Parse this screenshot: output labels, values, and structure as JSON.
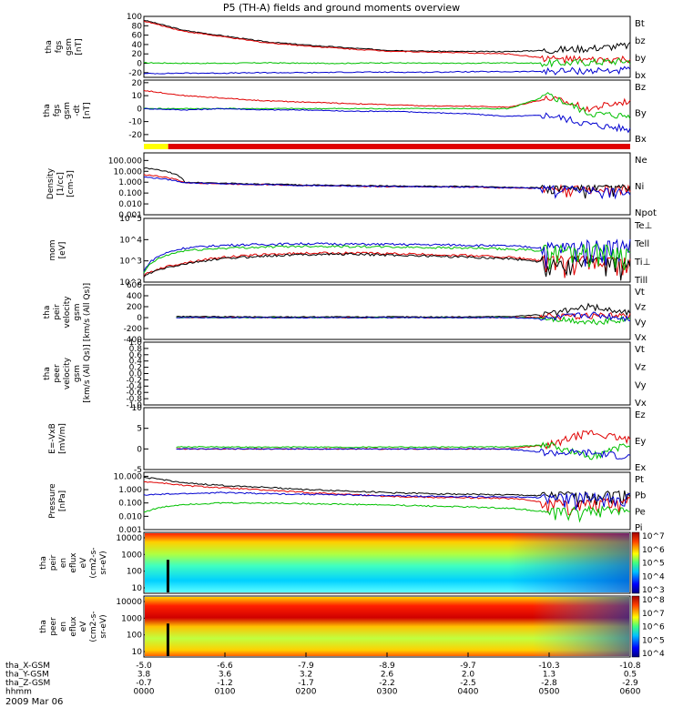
{
  "title": "P5 (TH-A) fields and ground moments overview",
  "date": "2009 Mar 06",
  "time_axis": {
    "rows": [
      {
        "label": "tha_X-GSM",
        "values": [
          "-5.0",
          "-6.6",
          "-7.9",
          "-8.9",
          "-9.7",
          "-10.3",
          "-10.8"
        ]
      },
      {
        "label": "tha_Y-GSM",
        "values": [
          "3.8",
          "3.6",
          "3.2",
          "2.6",
          "2.0",
          "1.3",
          "0.5"
        ]
      },
      {
        "label": "tha_Z-GSM",
        "values": [
          "-0.7",
          "-1.2",
          "-1.7",
          "-2.2",
          "-2.5",
          "-2.8",
          "-2.9"
        ]
      },
      {
        "label": "hhmm",
        "values": [
          "0000",
          "0100",
          "0200",
          "0300",
          "0400",
          "0500",
          "0600"
        ]
      }
    ]
  },
  "colors": {
    "black": "#000000",
    "red": "#e00000",
    "green": "#00c000",
    "blue": "#0000d0",
    "yellow": "#ffff00"
  },
  "chart_data": [
    {
      "type": "line",
      "panel": "fgs_gsm",
      "ylabel_lines": [
        "tha",
        "fgs",
        "gsm",
        "[nT]"
      ],
      "ylim": [
        -30,
        100
      ],
      "yticks": [
        "100",
        "80",
        "60",
        "40",
        "20",
        "0",
        "-20"
      ],
      "x": [
        0,
        0.5,
        1,
        1.5,
        2,
        2.5,
        3,
        3.5,
        4,
        4.5,
        5,
        5.5,
        6
      ],
      "series": [
        {
          "name": "Bt",
          "color": "#000000",
          "values": [
            92,
            70,
            58,
            46,
            39,
            33,
            28,
            26,
            25,
            25,
            28,
            32,
            38
          ]
        },
        {
          "name": "bz",
          "color": "#e00000",
          "values": [
            90,
            68,
            56,
            44,
            37,
            31,
            26,
            24,
            22,
            20,
            10,
            6,
            8
          ]
        },
        {
          "name": "by",
          "color": "#00c000",
          "values": [
            1,
            0,
            0,
            1,
            0,
            0,
            1,
            0,
            0,
            1,
            0,
            2,
            5
          ]
        },
        {
          "name": "bx",
          "color": "#0000d0",
          "values": [
            -22,
            -21,
            -21,
            -20,
            -20,
            -19,
            -19,
            -19,
            -18,
            -18,
            -17,
            -16,
            -15
          ]
        }
      ]
    },
    {
      "type": "line",
      "panel": "fgs_gsm_detrended",
      "ylabel_lines": [
        "tha",
        "fgs",
        "gsm",
        "-dt",
        "[nT]"
      ],
      "ylim": [
        -25,
        22
      ],
      "yticks": [
        "20",
        "10",
        "0",
        "-10",
        "-20"
      ],
      "x": [
        0,
        0.5,
        1,
        1.5,
        2,
        2.5,
        3,
        3.5,
        4,
        4.5,
        5,
        5.5,
        6
      ],
      "series": [
        {
          "name": "Bz",
          "color": "#e00000",
          "values": [
            14,
            10,
            8,
            6,
            5,
            4,
            3,
            2,
            2,
            1,
            8,
            0,
            6
          ]
        },
        {
          "name": "By",
          "color": "#00c000",
          "values": [
            0,
            0,
            0,
            0,
            0,
            0,
            0,
            0,
            0,
            0,
            10,
            -4,
            -6
          ]
        },
        {
          "name": "Bx",
          "color": "#0000d0",
          "values": [
            0,
            -1,
            0,
            -1,
            -1,
            -2,
            -2,
            -3,
            -4,
            -6,
            -5,
            -12,
            -16
          ]
        }
      ]
    },
    {
      "type": "line",
      "panel": "density",
      "ylabel_lines": [
        "Density",
        "[1/cc]",
        "[cm-3]"
      ],
      "ylog": true,
      "ylim": [
        0.001,
        500
      ],
      "yticks": [
        "100.000",
        "10.000",
        "1.000",
        "0.100",
        "0.010",
        "0.001"
      ],
      "x": [
        0,
        0.5,
        1,
        1.5,
        2,
        2.5,
        3,
        3.5,
        4,
        4.5,
        5,
        5.5,
        6
      ],
      "series": [
        {
          "name": "Ne",
          "color": "#e00000",
          "values": [
            5,
            0.9,
            0.7,
            0.6,
            0.5,
            0.45,
            0.4,
            0.38,
            0.36,
            0.3,
            0.28,
            0.25,
            0.3
          ]
        },
        {
          "name": "Ni",
          "color": "#000000",
          "values": [
            20,
            1.0,
            0.8,
            0.65,
            0.55,
            0.5,
            0.45,
            0.42,
            0.4,
            0.35,
            0.3,
            0.28,
            0.35
          ]
        },
        {
          "name": "Npot",
          "color": "#0000d0",
          "values": [
            3,
            0.9,
            0.7,
            0.6,
            0.5,
            0.45,
            0.4,
            0.38,
            0.36,
            0.3,
            0.28,
            0.2,
            0.1
          ]
        }
      ]
    },
    {
      "type": "line",
      "panel": "temperature",
      "ylabel_lines": [
        "mom",
        "[eV]"
      ],
      "ylog": true,
      "ylim": [
        100,
        100000
      ],
      "yticks": [
        "10^5",
        "10^4",
        "10^3",
        "10^2"
      ],
      "x": [
        0,
        0.5,
        1,
        1.5,
        2,
        2.5,
        3,
        3.5,
        4,
        4.5,
        5,
        5.5,
        6
      ],
      "series": [
        {
          "name": "Te⊥",
          "color": "#e00000",
          "values": [
            200,
            800,
            1500,
            2000,
            2300,
            2400,
            2200,
            2000,
            1800,
            1500,
            900,
            1000,
            800
          ]
        },
        {
          "name": "Tell",
          "color": "#000000",
          "values": [
            180,
            700,
            1300,
            1700,
            2000,
            2100,
            1900,
            1700,
            1500,
            1300,
            800,
            900,
            700
          ]
        },
        {
          "name": "Ti⊥",
          "color": "#0000d0",
          "values": [
            300,
            4000,
            5500,
            6000,
            6500,
            6200,
            6000,
            5800,
            5500,
            5000,
            4000,
            5000,
            6000
          ]
        },
        {
          "name": "Till",
          "color": "#00c000",
          "values": [
            250,
            3000,
            4000,
            4500,
            5000,
            4800,
            4500,
            4300,
            4000,
            3500,
            3000,
            3500,
            2500
          ]
        }
      ]
    },
    {
      "type": "line",
      "panel": "peir_velocity",
      "ylabel_lines": [
        "tha",
        "peir",
        "velocity",
        "gsm",
        "[km/s (All Qs)]"
      ],
      "ylim": [
        -400,
        600
      ],
      "yticks": [
        "600",
        "400",
        "200",
        "0",
        "-200",
        "-400"
      ],
      "x": [
        0.4,
        1,
        1.5,
        2,
        2.5,
        3,
        3.5,
        4,
        4.5,
        5,
        5.5,
        6
      ],
      "series": [
        {
          "name": "Vt",
          "color": "#000000",
          "values": [
            20,
            15,
            12,
            15,
            12,
            14,
            12,
            15,
            20,
            60,
            200,
            80
          ]
        },
        {
          "name": "Vz",
          "color": "#e00000",
          "values": [
            0,
            0,
            0,
            0,
            0,
            0,
            0,
            0,
            0,
            10,
            40,
            20
          ]
        },
        {
          "name": "Vy",
          "color": "#00c000",
          "values": [
            0,
            0,
            0,
            0,
            0,
            0,
            0,
            0,
            0,
            -10,
            -80,
            -30
          ]
        },
        {
          "name": "Vx",
          "color": "#0000d0",
          "values": [
            0,
            0,
            0,
            0,
            0,
            0,
            0,
            0,
            0,
            -20,
            60,
            -10
          ]
        }
      ]
    },
    {
      "type": "line",
      "panel": "peer_velocity",
      "ylabel_lines": [
        "tha",
        "peer",
        "velocity",
        "gsm",
        "[km/s (All Qs)]"
      ],
      "ylim": [
        -1.0,
        1.0
      ],
      "yticks": [
        "1.0",
        "0.8",
        "0.6",
        "0.4",
        "0.2",
        "0.0",
        "-0.2",
        "-0.4",
        "-0.6",
        "-0.8",
        "-1.0"
      ],
      "series": [
        {
          "name": "Vt",
          "color": "#000000",
          "values": []
        },
        {
          "name": "Vz",
          "color": "#e00000",
          "values": []
        },
        {
          "name": "Vy",
          "color": "#00c000",
          "values": []
        },
        {
          "name": "Vx",
          "color": "#0000d0",
          "values": []
        }
      ]
    },
    {
      "type": "line",
      "panel": "e_field",
      "ylabel_lines": [
        "E=-VxB",
        "[mV/m]"
      ],
      "ylim": [
        -5,
        10
      ],
      "yticks": [
        "10",
        "5",
        "0",
        "-5"
      ],
      "x": [
        0.4,
        1,
        1.5,
        2,
        2.5,
        3,
        3.5,
        4,
        4.5,
        5,
        5.5,
        6
      ],
      "series": [
        {
          "name": "Ez",
          "color": "#e00000",
          "values": [
            0,
            0,
            0,
            0,
            0,
            0,
            0,
            0,
            0,
            1,
            4,
            2
          ]
        },
        {
          "name": "Ey",
          "color": "#00c000",
          "values": [
            0.5,
            0.5,
            0.4,
            0.5,
            0.4,
            0.5,
            0.4,
            0.5,
            0.5,
            1,
            -2,
            1
          ]
        },
        {
          "name": "Ex",
          "color": "#0000d0",
          "values": [
            0,
            0,
            0,
            0,
            0,
            0,
            0,
            0,
            0,
            -1,
            -1,
            -2
          ]
        }
      ]
    },
    {
      "type": "line",
      "panel": "pressure",
      "ylabel_lines": [
        "Pressure",
        "[nPa]"
      ],
      "ylog": true,
      "ylim": [
        0.001,
        20
      ],
      "yticks": [
        "10.000",
        "1.000",
        "0.100",
        "0.010",
        "0.001"
      ],
      "x": [
        0,
        0.5,
        1,
        1.5,
        2,
        2.5,
        3,
        3.5,
        4,
        4.5,
        5,
        5.5,
        6
      ],
      "series": [
        {
          "name": "Pt",
          "color": "#000000",
          "values": [
            8,
            3,
            2,
            1.5,
            1.0,
            0.8,
            0.6,
            0.5,
            0.45,
            0.4,
            0.35,
            0.4,
            0.5
          ]
        },
        {
          "name": "Pb",
          "color": "#e00000",
          "values": [
            4,
            2,
            1.3,
            0.9,
            0.6,
            0.45,
            0.32,
            0.27,
            0.24,
            0.22,
            0.1,
            0.1,
            0.15
          ]
        },
        {
          "name": "Pe",
          "color": "#00c000",
          "values": [
            0.02,
            0.08,
            0.1,
            0.1,
            0.09,
            0.08,
            0.07,
            0.06,
            0.05,
            0.04,
            0.02,
            0.03,
            0.03
          ]
        },
        {
          "name": "Pi",
          "color": "#0000d0",
          "values": [
            0.4,
            0.5,
            0.6,
            0.5,
            0.45,
            0.4,
            0.35,
            0.32,
            0.3,
            0.28,
            0.25,
            0.3,
            0.3
          ]
        }
      ]
    },
    {
      "type": "heatmap",
      "panel": "peir_spectrogram",
      "ylabel_lines": [
        "tha",
        "peir",
        "en",
        "eflux",
        "eV",
        "(cm2-s-",
        "sr-eV)"
      ],
      "yticks": [
        "10000",
        "1000",
        "100",
        "10"
      ],
      "colorbar_ticks": [
        "10^7",
        "10^6",
        "10^5",
        "10^4",
        "10^3"
      ]
    },
    {
      "type": "heatmap",
      "panel": "peer_spectrogram",
      "ylabel_lines": [
        "tha",
        "peer",
        "en",
        "eflux",
        "eV",
        "(cm2-s-",
        "sr-eV)"
      ],
      "yticks": [
        "10000",
        "1000",
        "100",
        "10"
      ],
      "colorbar_ticks": [
        "10^8",
        "10^7",
        "10^6",
        "10^5",
        "10^4"
      ]
    }
  ]
}
